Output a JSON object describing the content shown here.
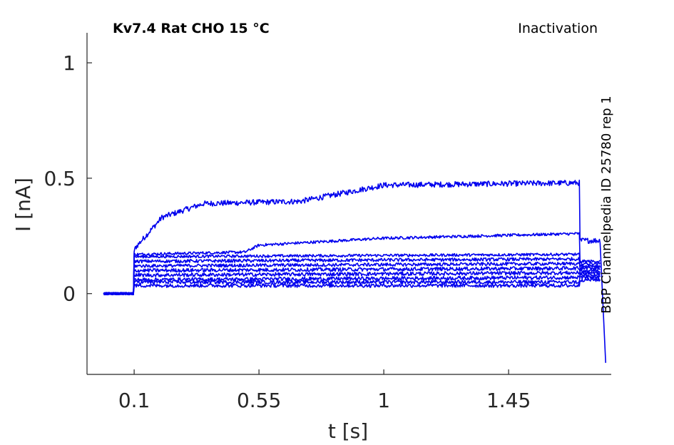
{
  "chart_data": {
    "type": "line",
    "title": "Kv7.4  Rat  CHO  15 °C",
    "subtitle": "Inactivation",
    "side_label": "BBP Channelpedia ID 25780 rep 1",
    "xlabel": "t [s]",
    "ylabel": "I [nA]",
    "xlim": [
      -0.07,
      1.82
    ],
    "ylim": [
      -0.35,
      1.13
    ],
    "xticks": [
      0.1,
      0.55,
      1,
      1.45
    ],
    "xtick_labels": [
      "0.1",
      "0.55",
      "1",
      "1.45"
    ],
    "yticks": [
      0,
      0.5,
      1
    ],
    "ytick_labels": [
      "0",
      "0.5",
      "1"
    ],
    "grid": false,
    "color": "#0000ee",
    "pulse": {
      "start": 0.1,
      "end": 1.705,
      "post_end": 1.805
    },
    "series": [
      {
        "baseline": 0.0,
        "steady": [
          [
            0.1,
            0.18
          ],
          [
            0.105,
            0.2
          ],
          [
            0.2,
            0.33
          ],
          [
            0.35,
            0.39
          ],
          [
            0.7,
            0.4
          ],
          [
            1.0,
            0.47
          ],
          [
            1.7,
            0.48
          ]
        ],
        "post": 0.23,
        "noise": 0.012
      },
      {
        "baseline": 0.0,
        "steady": [
          [
            0.1,
            0.17
          ],
          [
            0.5,
            0.18
          ],
          [
            0.55,
            0.21
          ],
          [
            1.0,
            0.24
          ],
          [
            1.7,
            0.26
          ]
        ],
        "post": 0.14,
        "noise": 0.006
      },
      {
        "baseline": 0.0,
        "steady": [
          [
            0.1,
            0.16
          ],
          [
            1.7,
            0.17
          ]
        ],
        "post": 0.13,
        "noise": 0.006
      },
      {
        "baseline": 0.0,
        "steady": [
          [
            0.1,
            0.14
          ],
          [
            1.7,
            0.15
          ]
        ],
        "post": 0.12,
        "noise": 0.007
      },
      {
        "baseline": 0.0,
        "steady": [
          [
            0.1,
            0.12
          ],
          [
            1.7,
            0.13
          ]
        ],
        "post": 0.11,
        "noise": 0.007
      },
      {
        "baseline": 0.0,
        "steady": [
          [
            0.1,
            0.1
          ],
          [
            1.7,
            0.11
          ]
        ],
        "post": 0.1,
        "noise": 0.008
      },
      {
        "baseline": 0.0,
        "steady": [
          [
            0.1,
            0.08
          ],
          [
            1.7,
            0.09
          ]
        ],
        "post": 0.09,
        "noise": 0.008
      },
      {
        "baseline": 0.0,
        "steady": [
          [
            0.1,
            0.06
          ],
          [
            1.7,
            0.07
          ]
        ],
        "post": 0.08,
        "noise": 0.008
      },
      {
        "baseline": 0.0,
        "steady": [
          [
            0.1,
            0.05
          ],
          [
            1.7,
            0.05
          ]
        ],
        "post": 0.07,
        "noise": 0.008
      },
      {
        "baseline": 0.0,
        "steady": [
          [
            0.1,
            0.035
          ],
          [
            1.7,
            0.035
          ]
        ],
        "post": 0.06,
        "noise": 0.008
      }
    ],
    "tail_transient": {
      "x": 1.8,
      "y": -0.3,
      "settle": -0.21
    }
  }
}
